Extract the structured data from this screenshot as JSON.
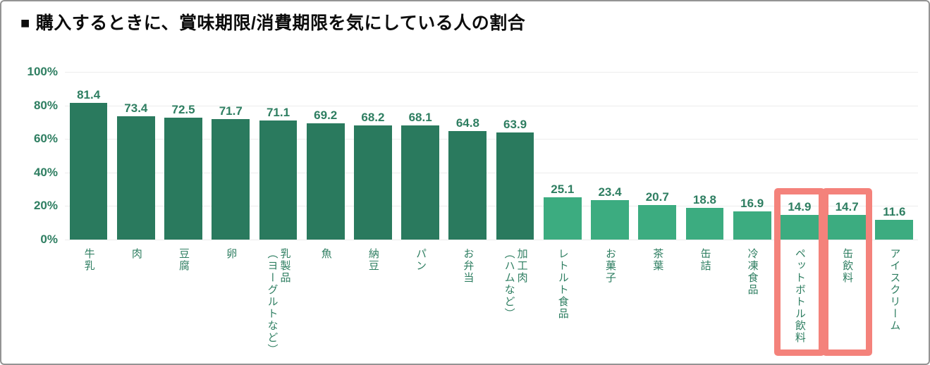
{
  "header": {
    "marker": "■",
    "title": "購入するときに、賞味期限/消費期限を気にしている人の割合"
  },
  "chart_data": {
    "type": "bar",
    "title": "購入するときに、賞味期限/消費期限を気にしている人の割合",
    "ylim": [
      0,
      100
    ],
    "y_tick_labels": [
      "100%",
      "80%",
      "60%",
      "40%",
      "20%",
      "0%"
    ],
    "grid": true,
    "legend": "none",
    "colors": {
      "dark_bar": "#2a7a5e",
      "light_bar": "#3cac80",
      "axis_text": "#2e7e61",
      "highlight_box": "#f4827b",
      "gridline": "#ececec"
    },
    "bars": [
      {
        "label": "牛乳",
        "value": 81.4,
        "tone": "dark",
        "highlighted": false
      },
      {
        "label": "肉",
        "value": 73.4,
        "tone": "dark",
        "highlighted": false
      },
      {
        "label": "豆腐",
        "value": 72.5,
        "tone": "dark",
        "highlighted": false
      },
      {
        "label": "卵",
        "value": 71.7,
        "tone": "dark",
        "highlighted": false
      },
      {
        "label": "乳製品\n（ヨーグルトなど）",
        "value": 71.1,
        "tone": "dark",
        "highlighted": false
      },
      {
        "label": "魚",
        "value": 69.2,
        "tone": "dark",
        "highlighted": false
      },
      {
        "label": "納豆",
        "value": 68.2,
        "tone": "dark",
        "highlighted": false
      },
      {
        "label": "パン",
        "value": 68.1,
        "tone": "dark",
        "highlighted": false
      },
      {
        "label": "お弁当",
        "value": 64.8,
        "tone": "dark",
        "highlighted": false
      },
      {
        "label": "加工肉\n（ハムなど）",
        "value": 63.9,
        "tone": "dark",
        "highlighted": false
      },
      {
        "label": "レトルト食品",
        "value": 25.1,
        "tone": "light",
        "highlighted": false
      },
      {
        "label": "お菓子",
        "value": 23.4,
        "tone": "light",
        "highlighted": false
      },
      {
        "label": "茶葉",
        "value": 20.7,
        "tone": "light",
        "highlighted": false
      },
      {
        "label": "缶詰",
        "value": 18.8,
        "tone": "light",
        "highlighted": false
      },
      {
        "label": "冷凍食品",
        "value": 16.9,
        "tone": "light",
        "highlighted": false
      },
      {
        "label": "ペットボトル飲料",
        "value": 14.9,
        "tone": "light",
        "highlighted": true
      },
      {
        "label": "缶飲料",
        "value": 14.7,
        "tone": "light",
        "highlighted": true
      },
      {
        "label": "アイスクリーム",
        "value": 11.6,
        "tone": "light",
        "highlighted": false
      }
    ]
  }
}
